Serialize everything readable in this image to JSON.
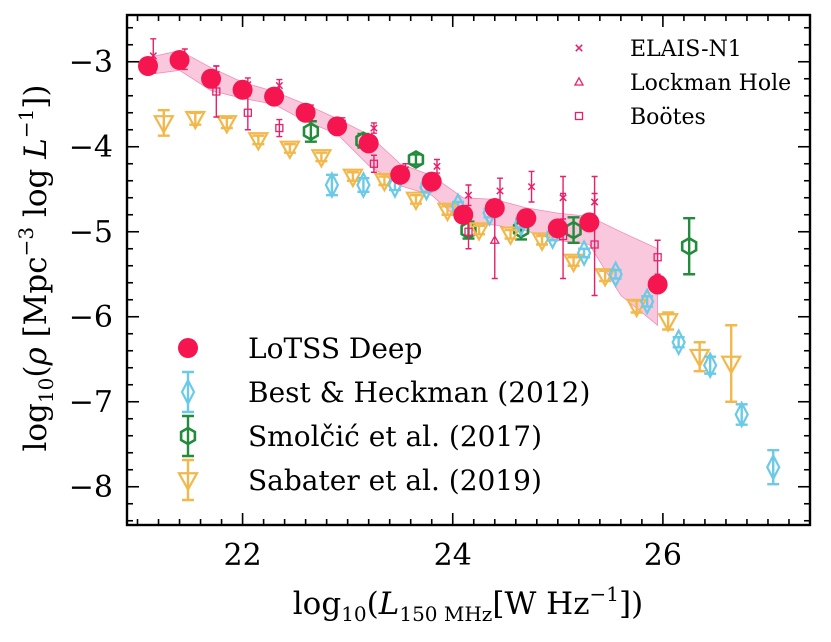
{
  "chart_data": {
    "type": "scatter",
    "xlabel": "log10(L150 MHz [W Hz−1])",
    "xlabel_parts": {
      "pre": "log",
      "sub10": "10",
      "open": "(",
      "L": "L",
      "lsub": "150 MHz",
      "unit": "[W Hz",
      "sup": "−1",
      "close": "])"
    },
    "ylabel": "log10(ρ [Mpc−3 log L−1])",
    "ylabel_parts": {
      "pre": "log",
      "sub10": "10",
      "open": "(",
      "rho": "ρ",
      "unit1": " [Mpc",
      "sup1": "−3",
      "unit2": " log ",
      "L": "L",
      "sup2": "−1",
      "close": "])"
    },
    "xlim": [
      20.9,
      27.4
    ],
    "ylim": [
      -8.45,
      -2.45
    ],
    "xticks": [
      22,
      24,
      26
    ],
    "xtick_labels": [
      "22",
      "24",
      "26"
    ],
    "yticks": [
      -3,
      -4,
      -5,
      -6,
      -7,
      -8
    ],
    "ytick_labels": [
      "−3",
      "−4",
      "−5",
      "−6",
      "−7",
      "−8"
    ],
    "band": {
      "name": "LoTSS Deep range",
      "color": "#f7b6d2",
      "x": [
        21.1,
        21.4,
        21.7,
        22.0,
        22.3,
        22.6,
        22.9,
        23.2,
        23.5,
        23.8,
        24.1,
        24.4,
        24.7,
        25.0,
        25.3,
        25.6,
        25.95
      ],
      "upper": [
        -2.95,
        -2.87,
        -3.07,
        -3.24,
        -3.35,
        -3.5,
        -3.67,
        -3.86,
        -4.2,
        -4.34,
        -4.6,
        -4.62,
        -4.72,
        -4.78,
        -4.82,
        -5.0,
        -5.2
      ],
      "lower": [
        -3.15,
        -3.1,
        -3.34,
        -3.43,
        -3.5,
        -3.7,
        -3.85,
        -4.22,
        -4.46,
        -4.57,
        -4.9,
        -4.92,
        -4.99,
        -5.1,
        -5.15,
        -5.75,
        -6.1
      ]
    },
    "series": [
      {
        "name": "LoTSS Deep",
        "marker": "circle",
        "color": "#f5164f",
        "in_legend": true,
        "points": [
          {
            "x": 21.1,
            "y": -3.05,
            "err": 0.1
          },
          {
            "x": 21.4,
            "y": -2.98,
            "err": 0.1
          },
          {
            "x": 21.7,
            "y": -3.2,
            "err": 0.1
          },
          {
            "x": 22.0,
            "y": -3.33,
            "err": 0.1
          },
          {
            "x": 22.3,
            "y": -3.41,
            "err": 0.05
          },
          {
            "x": 22.6,
            "y": -3.6,
            "err": 0.05
          },
          {
            "x": 22.9,
            "y": -3.76,
            "err": 0.05
          },
          {
            "x": 23.2,
            "y": -3.96,
            "err": 0.05
          },
          {
            "x": 23.5,
            "y": -4.33,
            "err": 0.05
          },
          {
            "x": 23.8,
            "y": -4.41,
            "err": 0.05
          },
          {
            "x": 24.1,
            "y": -4.8,
            "err": 0.05
          },
          {
            "x": 24.4,
            "y": -4.72,
            "err": 0.05
          },
          {
            "x": 24.7,
            "y": -4.84,
            "err": 0.05
          },
          {
            "x": 25.0,
            "y": -4.96,
            "err": 0.05
          },
          {
            "x": 25.3,
            "y": -4.89,
            "err": 0.05
          },
          {
            "x": 25.95,
            "y": -5.62,
            "err": 0.05
          }
        ]
      },
      {
        "name": "Best & Heckman (2012)",
        "marker": "diamond",
        "color": "#6ccae6",
        "in_legend": true,
        "points": [
          {
            "x": 22.85,
            "y": -4.45,
            "err": 0.12
          },
          {
            "x": 23.15,
            "y": -4.45,
            "err": 0.08
          },
          {
            "x": 23.45,
            "y": -4.45,
            "err": 0.06
          },
          {
            "x": 23.75,
            "y": -4.48,
            "err": 0.05
          },
          {
            "x": 24.05,
            "y": -4.7,
            "err": 0.05
          },
          {
            "x": 24.35,
            "y": -4.78,
            "err": 0.05
          },
          {
            "x": 24.65,
            "y": -4.9,
            "err": 0.05
          },
          {
            "x": 24.95,
            "y": -5.05,
            "err": 0.05
          },
          {
            "x": 25.25,
            "y": -5.25,
            "err": 0.05
          },
          {
            "x": 25.55,
            "y": -5.5,
            "err": 0.05
          },
          {
            "x": 25.85,
            "y": -5.82,
            "err": 0.06
          },
          {
            "x": 26.15,
            "y": -6.3,
            "err": 0.06
          },
          {
            "x": 26.45,
            "y": -6.57,
            "err": 0.1
          },
          {
            "x": 26.75,
            "y": -7.15,
            "err": 0.12
          },
          {
            "x": 27.05,
            "y": -7.77,
            "err": 0.2
          }
        ]
      },
      {
        "name": "Smolčić et al. (2017)",
        "marker": "hexagon",
        "color": "#228b3c",
        "in_legend": true,
        "points": [
          {
            "x": 22.65,
            "y": -3.82,
            "err": 0.12
          },
          {
            "x": 23.15,
            "y": -3.93,
            "err": 0.08
          },
          {
            "x": 23.65,
            "y": -4.15,
            "err": 0.06
          },
          {
            "x": 24.15,
            "y": -4.98,
            "err": 0.1
          },
          {
            "x": 24.65,
            "y": -4.97,
            "err": 0.12
          },
          {
            "x": 25.15,
            "y": -4.98,
            "err": 0.15
          },
          {
            "x": 26.25,
            "y": -5.17,
            "err": 0.33
          }
        ]
      },
      {
        "name": "Sabater et al. (2019)",
        "marker": "triangle_down",
        "color": "#f2b84b",
        "in_legend": true,
        "points": [
          {
            "x": 21.25,
            "y": -3.72,
            "err": 0.15
          },
          {
            "x": 21.55,
            "y": -3.67,
            "err": 0.07
          },
          {
            "x": 21.85,
            "y": -3.72,
            "err": 0.06
          },
          {
            "x": 22.15,
            "y": -3.92,
            "err": 0.05
          },
          {
            "x": 22.45,
            "y": -4.02,
            "err": 0.05
          },
          {
            "x": 22.75,
            "y": -4.12,
            "err": 0.05
          },
          {
            "x": 23.05,
            "y": -4.35,
            "err": 0.05
          },
          {
            "x": 23.35,
            "y": -4.4,
            "err": 0.05
          },
          {
            "x": 23.65,
            "y": -4.62,
            "err": 0.05
          },
          {
            "x": 23.95,
            "y": -4.75,
            "err": 0.05
          },
          {
            "x": 24.25,
            "y": -4.98,
            "err": 0.05
          },
          {
            "x": 24.55,
            "y": -5.03,
            "err": 0.05
          },
          {
            "x": 24.85,
            "y": -5.1,
            "err": 0.05
          },
          {
            "x": 25.15,
            "y": -5.35,
            "err": 0.05
          },
          {
            "x": 25.45,
            "y": -5.52,
            "err": 0.06
          },
          {
            "x": 25.75,
            "y": -5.88,
            "err": 0.07
          },
          {
            "x": 26.05,
            "y": -6.05,
            "err": 0.1
          },
          {
            "x": 26.35,
            "y": -6.47,
            "err": 0.17
          },
          {
            "x": 26.65,
            "y": -6.55,
            "err": 0.45
          }
        ]
      },
      {
        "name": "ELAIS-N1",
        "marker": "x",
        "color": "#e8206a",
        "in_legend": true,
        "points": [
          {
            "x": 21.15,
            "y": -2.93,
            "err": 0.2
          },
          {
            "x": 21.45,
            "y": -2.97,
            "err": 0.12
          },
          {
            "x": 21.75,
            "y": -3.15,
            "err": 0.1
          },
          {
            "x": 22.05,
            "y": -3.27,
            "err": 0.08
          },
          {
            "x": 22.35,
            "y": -3.28,
            "err": 0.07
          },
          {
            "x": 22.65,
            "y": -3.57,
            "err": 0.06
          },
          {
            "x": 22.95,
            "y": -3.72,
            "err": 0.06
          },
          {
            "x": 23.25,
            "y": -3.78,
            "err": 0.06
          },
          {
            "x": 23.55,
            "y": -4.27,
            "err": 0.07
          },
          {
            "x": 23.85,
            "y": -4.23,
            "err": 0.08
          },
          {
            "x": 24.15,
            "y": -4.57,
            "err": 0.12
          },
          {
            "x": 24.45,
            "y": -4.52,
            "err": 0.15
          },
          {
            "x": 24.75,
            "y": -4.47,
            "err": 0.18
          },
          {
            "x": 25.05,
            "y": -4.6,
            "err": 0.25
          },
          {
            "x": 25.35,
            "y": -4.65,
            "err": 0.3
          }
        ]
      },
      {
        "name": "Lockman Hole",
        "marker": "triangle_up",
        "color": "#e8206a",
        "in_legend": true,
        "points": [
          {
            "x": 24.4,
            "y": -5.1,
            "err": 0.45
          }
        ]
      },
      {
        "name": "Boötes",
        "marker": "square",
        "color": "#e8206a",
        "in_legend": true,
        "points": [
          {
            "x": 21.75,
            "y": -3.35,
            "err": 0.3
          },
          {
            "x": 22.05,
            "y": -3.6,
            "err": 0.2
          },
          {
            "x": 22.35,
            "y": -3.78,
            "err": 0.1
          },
          {
            "x": 23.25,
            "y": -4.2,
            "err": 0.1
          },
          {
            "x": 24.15,
            "y": -5.0,
            "err": 0.2
          },
          {
            "x": 25.05,
            "y": -5.05,
            "err": 0.5
          },
          {
            "x": 25.35,
            "y": -5.15,
            "err": 0.6
          },
          {
            "x": 25.95,
            "y": -5.3,
            "err": 0.2
          }
        ]
      }
    ],
    "legend_main": [
      "LoTSS Deep",
      "Best & Heckman (2012)",
      "Smolčić et al. (2017)",
      "Sabater et al. (2019)"
    ],
    "legend_fields": [
      "ELAIS-N1",
      "Lockman Hole",
      "Boötes"
    ],
    "legend_main_placement": "lower-left",
    "legend_fields_placement": "upper-right"
  }
}
